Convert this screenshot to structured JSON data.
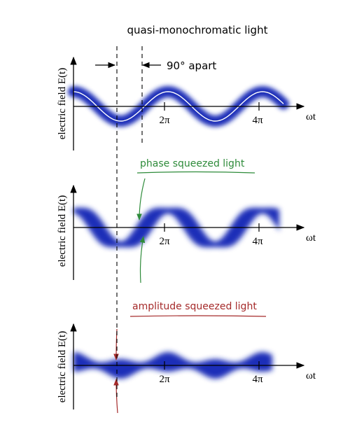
{
  "title": "quasi-monochromatic light",
  "annotation_90": "90° apart",
  "panels": [
    {
      "ylabel": "electric field E(t)",
      "xlabel": "ωt",
      "tick_2pi": "2π",
      "tick_4pi": "4π"
    },
    {
      "ylabel": "electric field E(t)",
      "xlabel": "ωt",
      "tick_2pi": "2π",
      "tick_4pi": "4π",
      "caption": "phase squeezed  light"
    },
    {
      "ylabel": "electric field E(t)",
      "xlabel": "ωt",
      "tick_2pi": "2π",
      "tick_4pi": "4π",
      "caption": "amplitude squeezed  light"
    }
  ],
  "colors": {
    "field_band": "#1a2fb8",
    "phase_caption": "#2e8b3a",
    "amplitude_caption": "#a52a2a",
    "axis": "#000000"
  }
}
